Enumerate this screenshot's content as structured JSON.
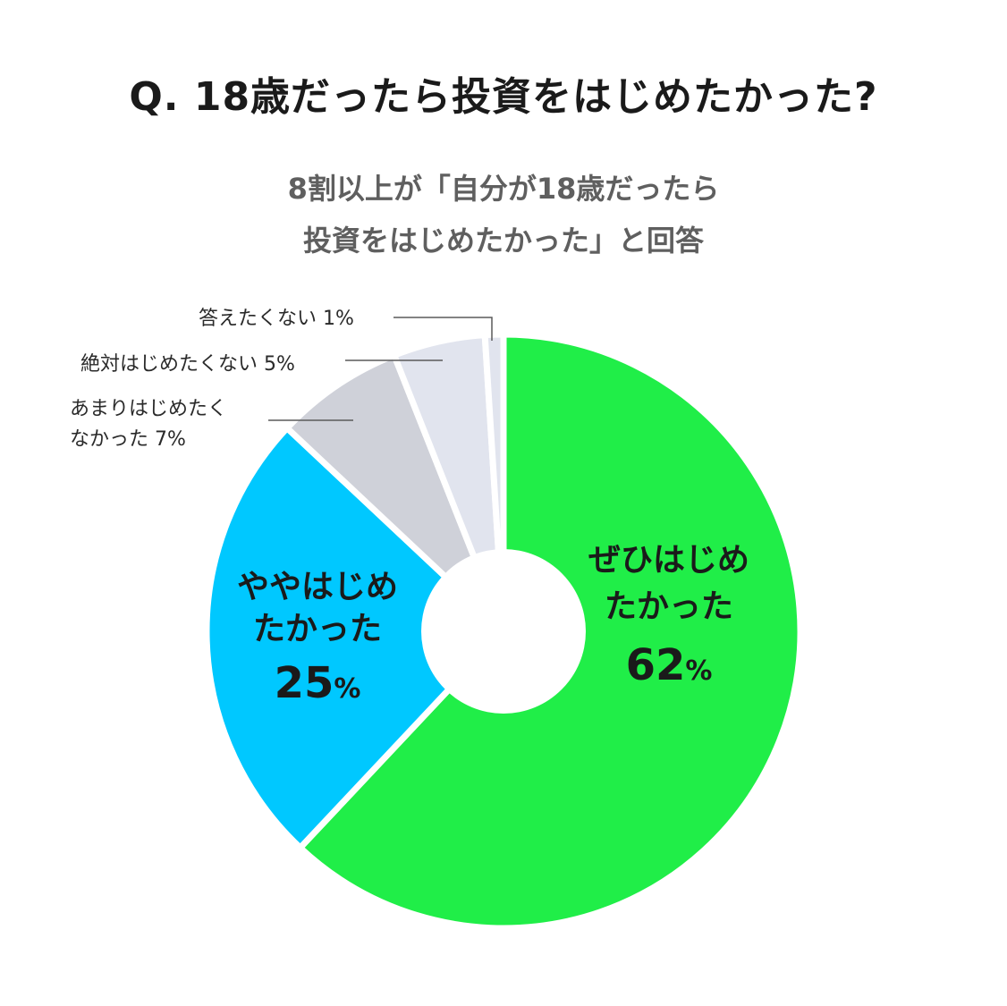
{
  "title": "Q. 18歳だったら投資をはじめたかった?",
  "subtitle": {
    "line1": "8割以上が「自分が18歳だったら",
    "line2": "投資をはじめたかった」と回答"
  },
  "colors": {
    "green": "#20ee48",
    "blue": "#00c8ff",
    "gray_dark": "#cfd1d9",
    "gray_light": "#e1e4ee",
    "separator": "#ffffff",
    "leader": "#5a5a5a"
  },
  "chart_data": {
    "type": "pie",
    "hole": true,
    "unit": "%",
    "slices": [
      {
        "label_lines": [
          "ぜひはじめ",
          "たかった"
        ],
        "value": 62,
        "color": "#20ee48",
        "label_position": "inside"
      },
      {
        "label_lines": [
          "ややはじめ",
          "たかった"
        ],
        "value": 25,
        "color": "#00c8ff",
        "label_position": "inside"
      },
      {
        "label_lines": [
          "あまりはじめたく",
          "なかった"
        ],
        "value": 7,
        "color": "#cfd1d9",
        "label_position": "outside"
      },
      {
        "label_lines": [
          "絶対はじめたくない"
        ],
        "value": 5,
        "color": "#e1e4ee",
        "label_position": "outside"
      },
      {
        "label_lines": [
          "答えたくない"
        ],
        "value": 1,
        "color": "#e1e4ee",
        "label_position": "outside"
      }
    ]
  }
}
